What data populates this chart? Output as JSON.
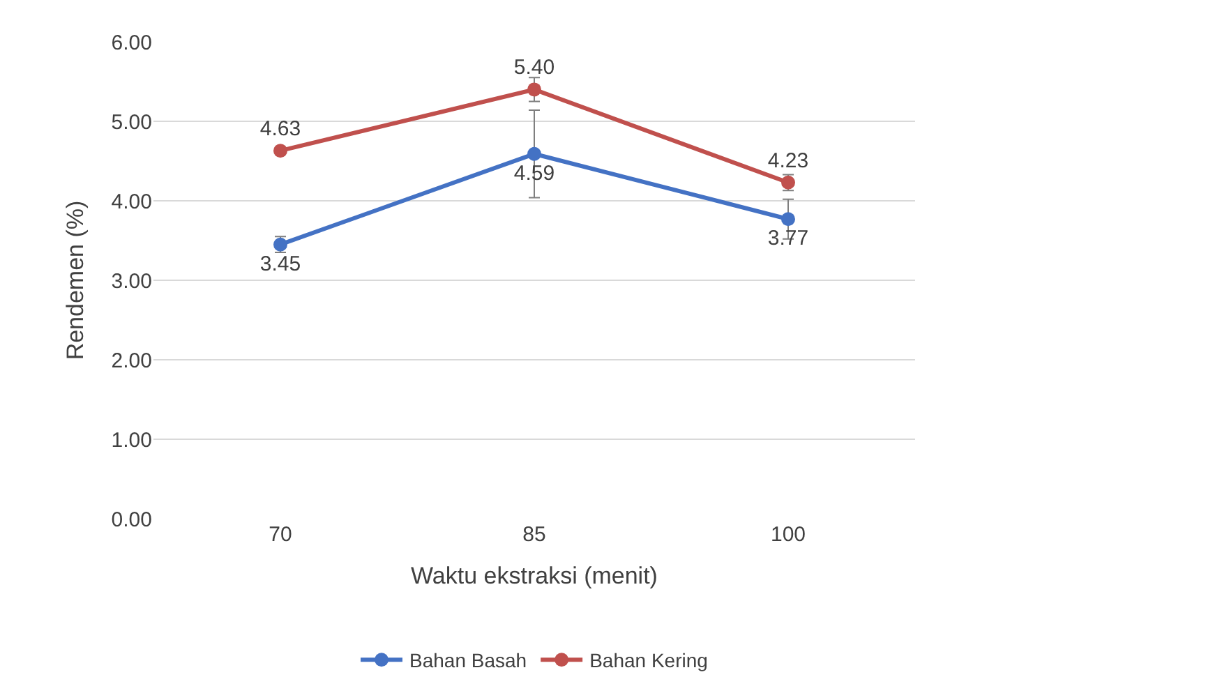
{
  "chart_data": {
    "type": "line",
    "xlabel": "Waktu ekstraksi (menit)",
    "ylabel": "Rendemen (%)",
    "categories": [
      "70",
      "85",
      "100"
    ],
    "series": [
      {
        "name": "Bahan Basah",
        "color": "#4472c4",
        "values": [
          3.45,
          4.59,
          3.77
        ],
        "value_labels": [
          "3.45",
          "4.59",
          "3.77"
        ],
        "errors": [
          0.1,
          0.55,
          0.25
        ]
      },
      {
        "name": "Bahan Kering",
        "color": "#c0504d",
        "values": [
          4.63,
          5.4,
          4.23
        ],
        "value_labels": [
          "4.63",
          "5.40",
          "4.23"
        ],
        "errors": [
          null,
          0.15,
          0.1
        ]
      }
    ],
    "ylim": [
      0,
      6
    ],
    "yticks": [
      {
        "value": 0,
        "label": "0.00"
      },
      {
        "value": 1,
        "label": "1.00"
      },
      {
        "value": 2,
        "label": "2.00"
      },
      {
        "value": 3,
        "label": "3.00"
      },
      {
        "value": 4,
        "label": "4.00"
      },
      {
        "value": 5,
        "label": "5.00"
      },
      {
        "value": 6,
        "label": "6.00"
      }
    ],
    "grid": "y",
    "legend": "bottom",
    "marker": "circle",
    "line_style": "solid"
  }
}
